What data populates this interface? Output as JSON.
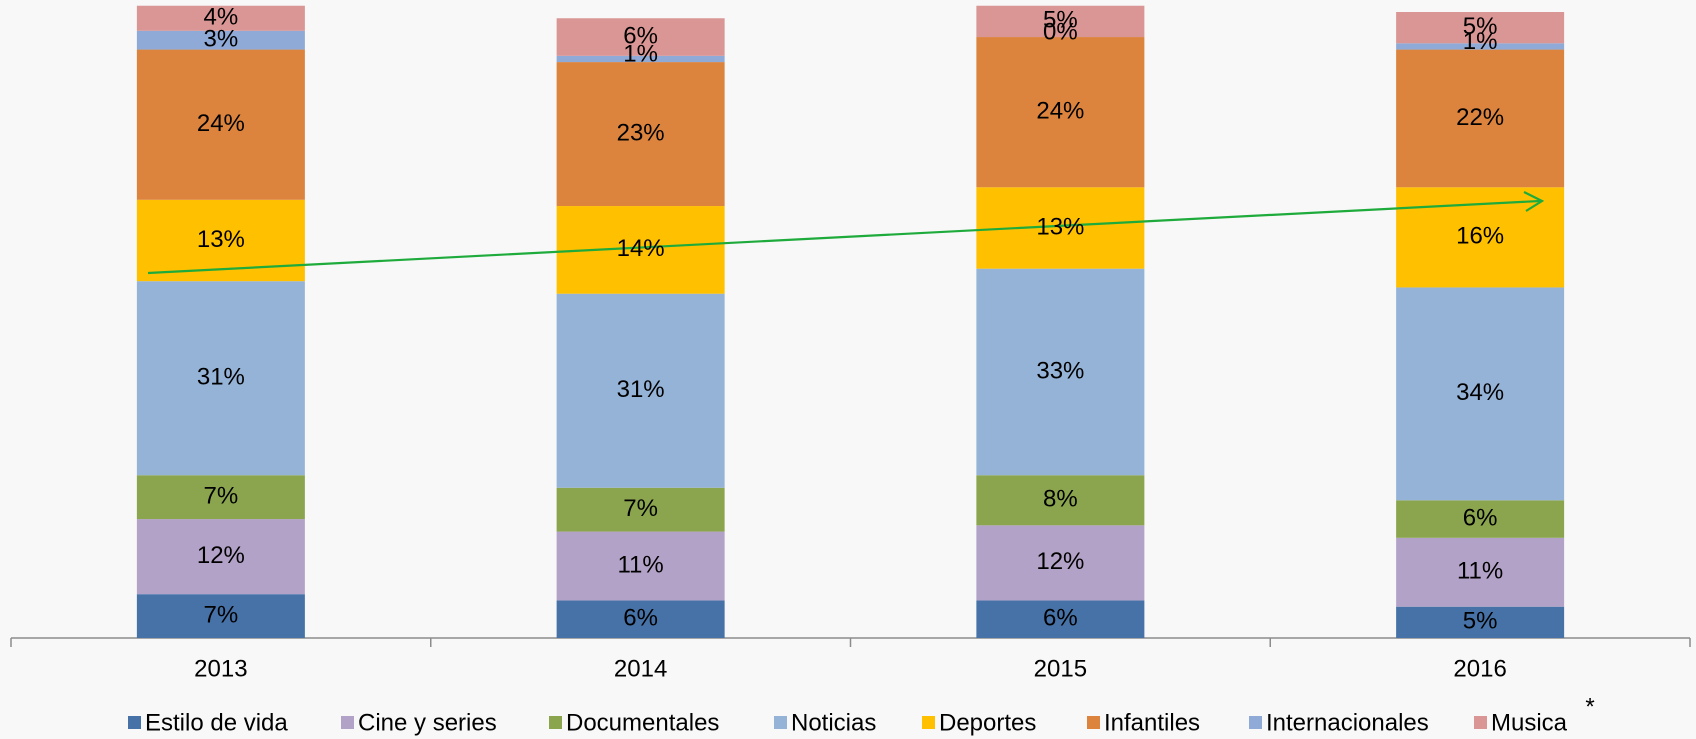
{
  "chart_data": {
    "type": "stacked_bar",
    "categories": [
      "2013",
      "2014",
      "2015",
      "2016"
    ],
    "series": [
      {
        "name": "Estilo de vida",
        "color": "#4672a8",
        "values": [
          7,
          6,
          6,
          5
        ],
        "value_labels": [
          "7%",
          "6%",
          "6%",
          "5%"
        ]
      },
      {
        "name": "Cine y series",
        "color": "#b3a2c7",
        "values": [
          12,
          11,
          12,
          11
        ],
        "value_labels": [
          "12%",
          "11%",
          "12%",
          "11%"
        ]
      },
      {
        "name": "Documentales",
        "color": "#8ba54f",
        "values": [
          7,
          7,
          8,
          6
        ],
        "value_labels": [
          "7%",
          "7%",
          "8%",
          "6%"
        ]
      },
      {
        "name": "Noticias",
        "color": "#95b3d7",
        "values": [
          31,
          31,
          33,
          34
        ],
        "value_labels": [
          "31%",
          "31%",
          "33%",
          "34%"
        ]
      },
      {
        "name": "Deportes",
        "color": "#ffc000",
        "values": [
          13,
          14,
          13,
          16
        ],
        "value_labels": [
          "13%",
          "14%",
          "13%",
          "16%"
        ]
      },
      {
        "name": "Infantiles",
        "color": "#dc843e",
        "values": [
          24,
          23,
          24,
          22
        ],
        "value_labels": [
          "24%",
          "23%",
          "24%",
          "22%"
        ]
      },
      {
        "name": "Internacionales",
        "color": "#8faad6",
        "values": [
          3,
          1,
          0,
          1
        ],
        "value_labels": [
          "3%",
          "1%",
          "0%",
          "1%"
        ]
      },
      {
        "name": "Musica",
        "color": "#d99694",
        "values": [
          4,
          6,
          5,
          5
        ],
        "value_labels": [
          "4%",
          "6%",
          "5%",
          "5%"
        ]
      }
    ],
    "annotation": "*",
    "legend": "bottom"
  }
}
